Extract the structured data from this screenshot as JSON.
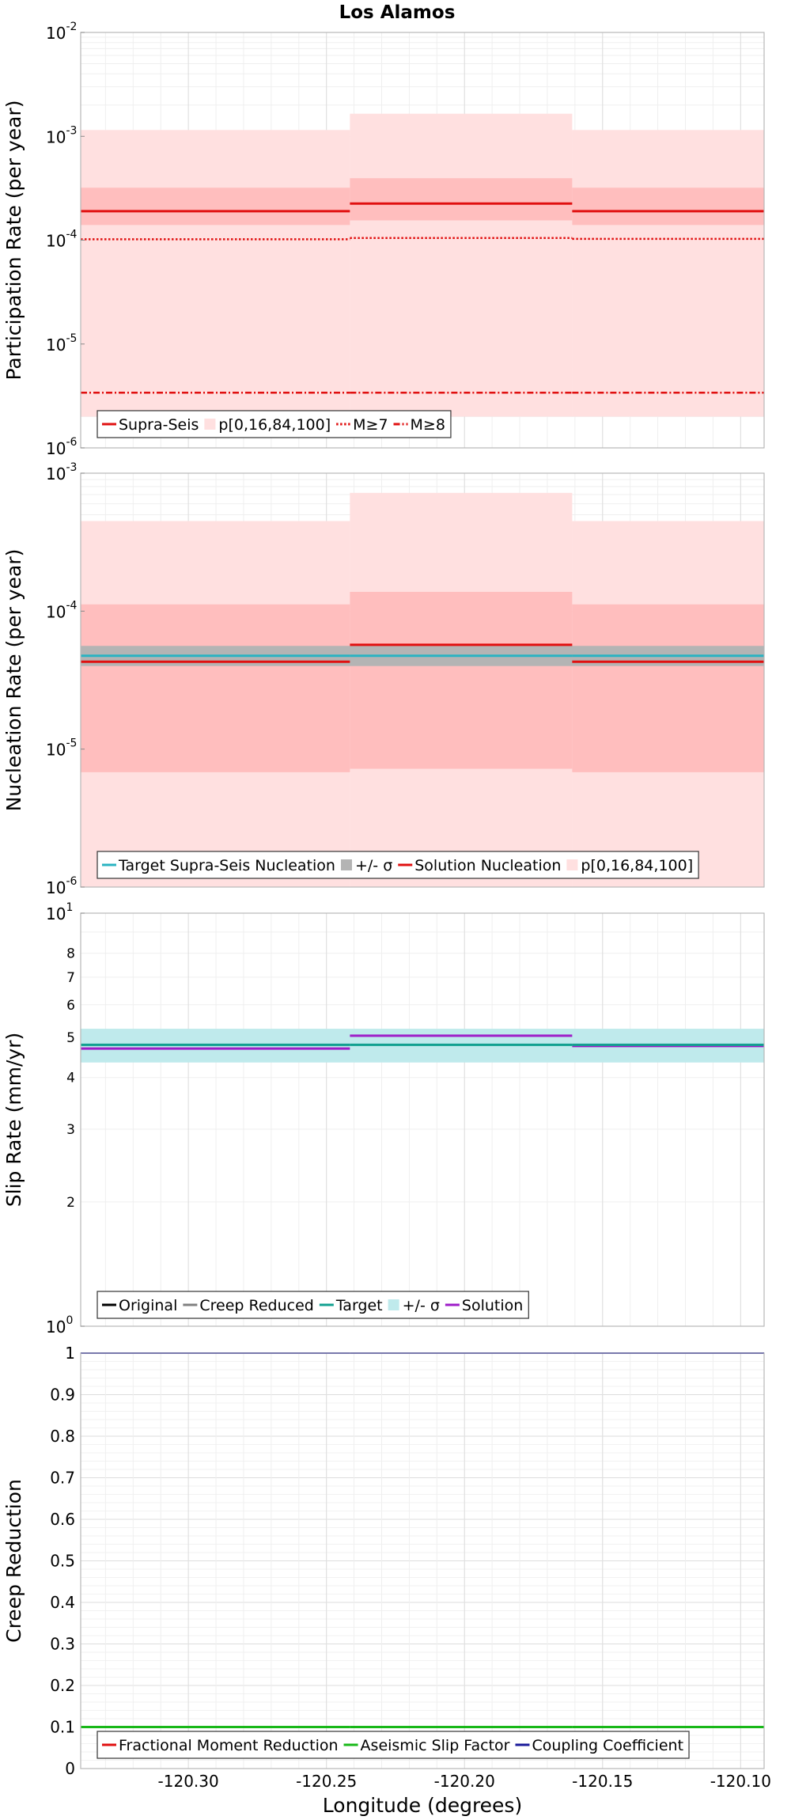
{
  "title": "Los Alamos",
  "xlabel": "Longitude (degrees)",
  "x_ticks": [
    "-120.30",
    "-120.25",
    "-120.20",
    "-120.15",
    "-120.10"
  ],
  "x_tick_values": [
    -120.3,
    -120.25,
    -120.2,
    -120.15,
    -120.1
  ],
  "xlim": [
    -120.339,
    -120.0915
  ],
  "colors": {
    "red": "#e01010",
    "light_red": "#ffe0e0",
    "mid_red": "#ffbebe",
    "gray": "#b4b4b4",
    "gray_line": "#808080",
    "cyan": "#2ab3c2",
    "cyan_band": "#bfeaec",
    "teal": "#12a090",
    "purple": "#9e1cc8",
    "green": "#18b818",
    "navy": "#1a1a9a",
    "black": "#000000"
  },
  "chart_data": [
    {
      "type": "line",
      "name": "participation",
      "ylabel": "Participation Rate (per year)",
      "yscale": "log",
      "ylim": [
        1e-06,
        0.01
      ],
      "y_ticks": [
        {
          "base": "10",
          "exp": "-6"
        },
        {
          "base": "10",
          "exp": "-5"
        },
        {
          "base": "10",
          "exp": "-4"
        },
        {
          "base": "10",
          "exp": "-3"
        },
        {
          "base": "10",
          "exp": "-2"
        }
      ],
      "segments": [
        [
          -120.339,
          -120.2415
        ],
        [
          -120.2415,
          -120.161
        ],
        [
          -120.161,
          -120.0915
        ]
      ],
      "bands": [
        {
          "color_key": "light_red",
          "ranges": [
            [
              2e-06,
              0.00115
            ],
            [
              2e-06,
              0.00165
            ],
            [
              2e-06,
              0.00115
            ]
          ]
        },
        {
          "color_key": "mid_red",
          "ranges": [
            [
              0.00014,
              0.00032
            ],
            [
              0.000155,
              0.000395
            ],
            [
              0.00014,
              0.00032
            ]
          ]
        }
      ],
      "lines": [
        {
          "color_key": "red",
          "style": "solid",
          "width": 3,
          "values": [
            0.00019,
            0.000225,
            0.00019
          ]
        },
        {
          "color_key": "red",
          "style": "dotted",
          "width": 2.5,
          "values": [
            0.000102,
            0.000105,
            0.000103
          ]
        },
        {
          "color_key": "red",
          "style": "dashdot",
          "width": 2.5,
          "values": [
            3.4e-06,
            3.4e-06,
            3.4e-06
          ]
        }
      ],
      "legend": [
        {
          "label": "Supra-Seis",
          "kind": "line",
          "color_key": "red",
          "style": "solid"
        },
        {
          "label": "p[0,16,84,100]",
          "kind": "patch",
          "color_key": "light_red"
        },
        {
          "label": "M≥7",
          "kind": "line",
          "color_key": "red",
          "style": "dotted"
        },
        {
          "label": "M≥8",
          "kind": "line",
          "color_key": "red",
          "style": "dashdot"
        }
      ]
    },
    {
      "type": "line",
      "name": "nucleation",
      "ylabel": "Nucleation Rate (per year)",
      "yscale": "log",
      "ylim": [
        1e-06,
        0.001
      ],
      "y_ticks": [
        {
          "base": "10",
          "exp": "-6"
        },
        {
          "base": "10",
          "exp": "-5"
        },
        {
          "base": "10",
          "exp": "-4"
        },
        {
          "base": "10",
          "exp": "-3"
        }
      ],
      "segments": [
        [
          -120.339,
          -120.2415
        ],
        [
          -120.2415,
          -120.161
        ],
        [
          -120.161,
          -120.0915
        ]
      ],
      "bands": [
        {
          "color_key": "light_red",
          "ranges": [
            [
              1e-06,
              0.00045
            ],
            [
              1e-06,
              0.00072
            ],
            [
              1e-06,
              0.00045
            ]
          ]
        },
        {
          "color_key": "mid_red",
          "ranges": [
            [
              6.8e-06,
              0.000112
            ],
            [
              7.2e-06,
              0.000138
            ],
            [
              6.8e-06,
              0.000112
            ]
          ]
        },
        {
          "color_key": "gray",
          "continuous": true,
          "ranges": [
            [
              4e-05,
              5.6e-05
            ],
            [
              4e-05,
              5.6e-05
            ],
            [
              4e-05,
              5.6e-05
            ]
          ]
        }
      ],
      "lines": [
        {
          "color_key": "cyan",
          "style": "solid",
          "width": 3,
          "continuous": true,
          "values": [
            4.75e-05,
            4.75e-05,
            4.75e-05
          ]
        },
        {
          "color_key": "red",
          "style": "solid",
          "width": 3,
          "values": [
            4.3e-05,
            5.7e-05,
            4.3e-05
          ]
        }
      ],
      "legend": [
        {
          "label": "Target Supra-Seis Nucleation",
          "kind": "line",
          "color_key": "cyan",
          "style": "solid"
        },
        {
          "label": "+/- σ",
          "kind": "patch",
          "color_key": "gray"
        },
        {
          "label": "Solution Nucleation",
          "kind": "line",
          "color_key": "red",
          "style": "solid"
        },
        {
          "label": "p[0,16,84,100]",
          "kind": "patch",
          "color_key": "light_red"
        }
      ]
    },
    {
      "type": "line",
      "name": "slip",
      "ylabel": "Slip Rate (mm/yr)",
      "yscale": "log",
      "ylim": [
        1,
        10
      ],
      "y_ticks": [
        {
          "base": "10",
          "exp": "0"
        },
        {
          "base": "10",
          "exp": "1"
        }
      ],
      "y_minor_ticks": [
        {
          "label": "2",
          "value": 2
        },
        {
          "label": "3",
          "value": 3
        },
        {
          "label": "4",
          "value": 4
        },
        {
          "label": "5",
          "value": 5
        },
        {
          "label": "6",
          "value": 6
        },
        {
          "label": "7",
          "value": 7
        },
        {
          "label": "8",
          "value": 8
        }
      ],
      "segments": [
        [
          -120.339,
          -120.2415
        ],
        [
          -120.2415,
          -120.161
        ],
        [
          -120.161,
          -120.0915
        ]
      ],
      "bands": [
        {
          "color_key": "cyan_band",
          "continuous": true,
          "ranges": [
            [
              4.35,
              5.25
            ],
            [
              4.35,
              5.25
            ],
            [
              4.35,
              5.25
            ]
          ]
        }
      ],
      "lines": [
        {
          "color_key": "purple",
          "style": "solid",
          "width": 3,
          "values": [
            4.7,
            5.05,
            4.77
          ]
        },
        {
          "color_key": "teal",
          "style": "solid",
          "width": 3,
          "continuous": true,
          "values": [
            4.8,
            4.8,
            4.8
          ]
        }
      ],
      "legend": [
        {
          "label": "Original",
          "kind": "line",
          "color_key": "black",
          "style": "solid"
        },
        {
          "label": "Creep Reduced",
          "kind": "line",
          "color_key": "gray_line",
          "style": "solid"
        },
        {
          "label": "Target",
          "kind": "line",
          "color_key": "teal",
          "style": "solid"
        },
        {
          "label": "+/- σ",
          "kind": "patch",
          "color_key": "cyan_band"
        },
        {
          "label": "Solution",
          "kind": "line",
          "color_key": "purple",
          "style": "solid"
        }
      ]
    },
    {
      "type": "line",
      "name": "creep",
      "ylabel": "Creep Reduction",
      "yscale": "linear",
      "ylim": [
        0,
        1
      ],
      "y_ticks": [
        {
          "label": "0",
          "value": 0
        },
        {
          "label": "0.1",
          "value": 0.1
        },
        {
          "label": "0.2",
          "value": 0.2
        },
        {
          "label": "0.3",
          "value": 0.3
        },
        {
          "label": "0.4",
          "value": 0.4
        },
        {
          "label": "0.5",
          "value": 0.5
        },
        {
          "label": "0.6",
          "value": 0.6
        },
        {
          "label": "0.7",
          "value": 0.7
        },
        {
          "label": "0.8",
          "value": 0.8
        },
        {
          "label": "0.9",
          "value": 0.9
        },
        {
          "label": "1",
          "value": 1
        }
      ],
      "segments": [
        [
          -120.339,
          -120.2415
        ],
        [
          -120.2415,
          -120.161
        ],
        [
          -120.161,
          -120.0915
        ]
      ],
      "bands": [],
      "lines": [
        {
          "color_key": "green",
          "style": "solid",
          "width": 3,
          "continuous": true,
          "values": [
            0.1,
            0.1,
            0.1
          ]
        },
        {
          "color_key": "navy",
          "style": "solid",
          "width": 2,
          "continuous": true,
          "values": [
            1.0,
            1.0,
            1.0
          ]
        }
      ],
      "legend": [
        {
          "label": "Fractional Moment Reduction",
          "kind": "line",
          "color_key": "red",
          "style": "solid"
        },
        {
          "label": "Aseismic Slip Factor",
          "kind": "line",
          "color_key": "green",
          "style": "solid"
        },
        {
          "label": "Coupling Coefficient",
          "kind": "line",
          "color_key": "navy",
          "style": "solid"
        }
      ]
    }
  ]
}
